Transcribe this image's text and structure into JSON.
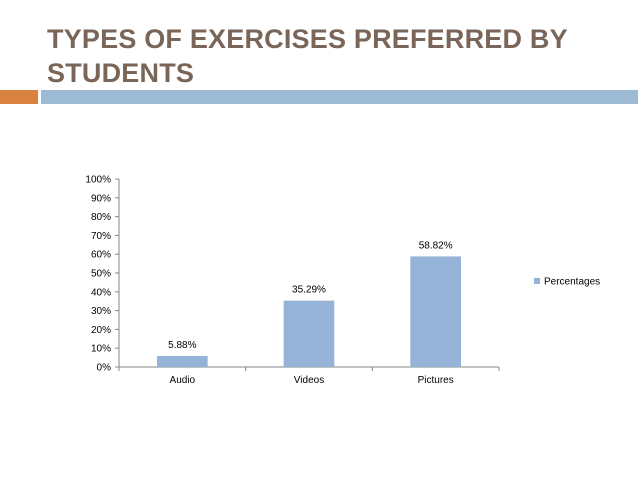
{
  "slide": {
    "title": "TYPES OF EXERCISES PREFERRED BY STUDENTS"
  },
  "colors": {
    "title": "#7a6659",
    "accent_orange": "#d9813e",
    "accent_blue": "#9dbad4",
    "bar": "#95b3d7"
  },
  "chart_data": {
    "type": "bar",
    "categories": [
      "Audio",
      "Videos",
      "Pictures"
    ],
    "series": [
      {
        "name": "Percentages",
        "values": [
          5.88,
          35.29,
          58.82
        ]
      }
    ],
    "data_labels": [
      "5.88%",
      "35.29%",
      "58.82%"
    ],
    "yticks": [
      "0%",
      "10%",
      "20%",
      "30%",
      "40%",
      "50%",
      "60%",
      "70%",
      "80%",
      "90%",
      "100%"
    ],
    "ylim": [
      0,
      100
    ],
    "legend_position": "right",
    "grid": false
  }
}
